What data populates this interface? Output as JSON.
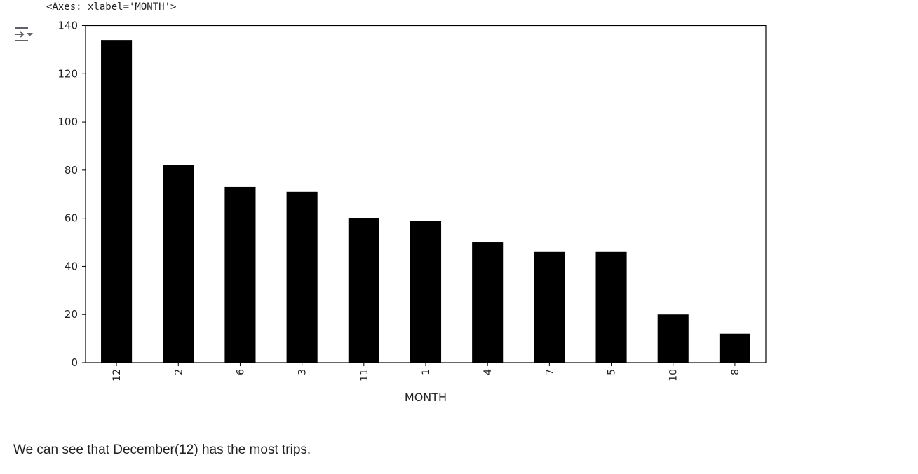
{
  "output": {
    "repr": "<Axes: xlabel='MONTH'>",
    "toggle_icon": "output-collapse-icon"
  },
  "chart_data": {
    "type": "bar",
    "categories": [
      "12",
      "2",
      "6",
      "3",
      "11",
      "1",
      "4",
      "7",
      "5",
      "10",
      "8"
    ],
    "values": [
      134,
      82,
      73,
      71,
      60,
      59,
      50,
      46,
      46,
      20,
      12
    ],
    "title": "",
    "xlabel": "MONTH",
    "ylabel": "",
    "ylim": [
      0,
      140
    ],
    "yticks": [
      0,
      20,
      40,
      60,
      80,
      100,
      120,
      140
    ],
    "bar_color": "#000000",
    "grid": false,
    "legend": "none",
    "xtick_rotation": "vertical"
  },
  "markdown": {
    "text": "We can see that December(12) has the most trips."
  }
}
